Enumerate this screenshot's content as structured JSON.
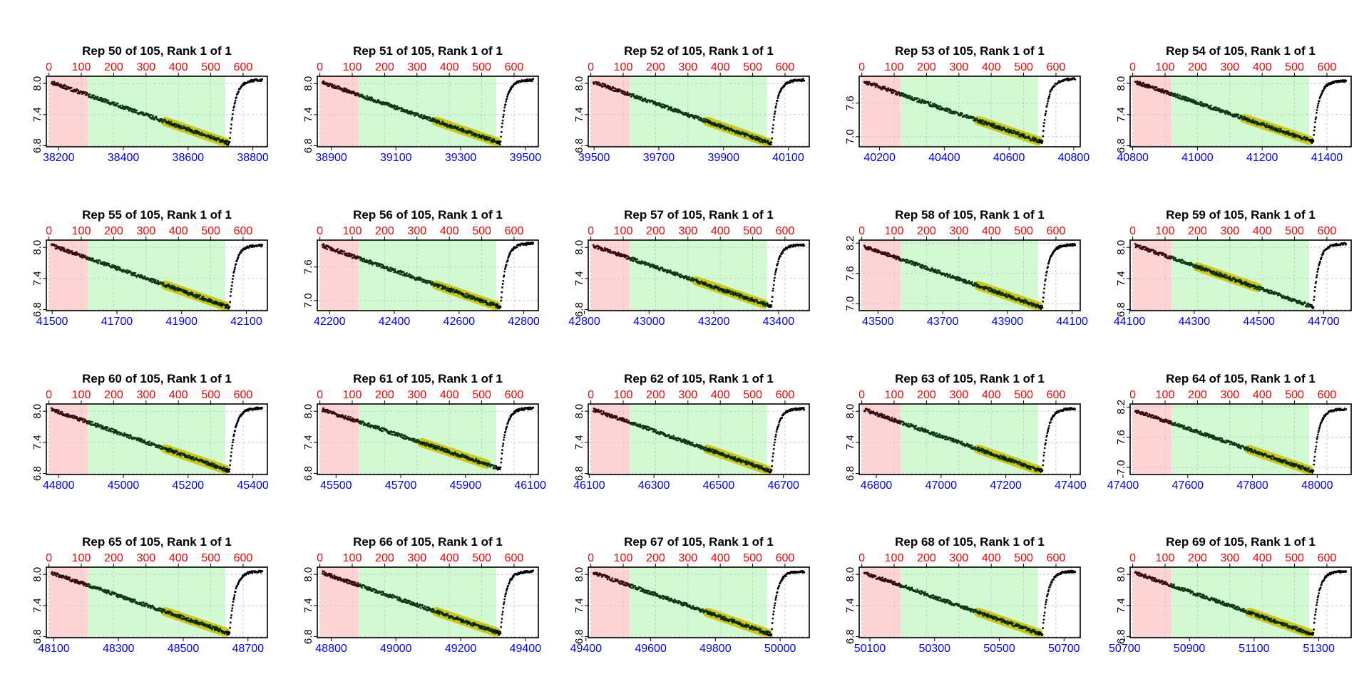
{
  "colors": {
    "top_axis": "#ff0000",
    "bottom_axis": "#0000ff",
    "red_region": "#ffd4d4",
    "green_region": "#d2fad2",
    "yellow_fit": "#cfc51f",
    "grid": "#c8c8c8",
    "points_red": "#3a0a0a",
    "points_green": "#0a3a12",
    "points_black": "#000000"
  },
  "chart_data": [
    {
      "type": "scatter",
      "title": "Rep 50 of 105, Rank 1 of 1",
      "top_ticks": [
        0,
        100,
        200,
        300,
        400,
        500,
        600
      ],
      "bottom_ticks": [
        38200,
        38400,
        38600,
        38800
      ],
      "bottom_offset": 38170,
      "yticks": [
        6.8,
        7.4,
        8.0
      ],
      "ylim": [
        6.78,
        8.14
      ],
      "y_start": 8.02,
      "y_bottom": 6.84,
      "y_end": 8.07,
      "trough_x": 558,
      "yellow": [
        360,
        545
      ]
    },
    {
      "type": "scatter",
      "title": "Rep 51 of 105, Rank 1 of 1",
      "top_ticks": [
        0,
        100,
        200,
        300,
        400,
        500,
        600
      ],
      "bottom_ticks": [
        38900,
        39100,
        39300,
        39500
      ],
      "bottom_offset": 38865,
      "yticks": [
        6.8,
        7.4,
        8.0
      ],
      "ylim": [
        6.78,
        8.14
      ],
      "y_start": 8.02,
      "y_bottom": 6.85,
      "y_end": 8.07,
      "trough_x": 558,
      "yellow": [
        360,
        545
      ]
    },
    {
      "type": "scatter",
      "title": "Rep 52 of 105, Rank 1 of 1",
      "top_ticks": [
        0,
        100,
        200,
        300,
        400,
        500,
        600
      ],
      "bottom_ticks": [
        39500,
        39700,
        39900,
        40100
      ],
      "bottom_offset": 39490,
      "yticks": [
        6.8,
        7.4,
        8.0
      ],
      "ylim": [
        6.78,
        8.14
      ],
      "y_start": 8.03,
      "y_bottom": 6.84,
      "y_end": 8.07,
      "trough_x": 558,
      "yellow": [
        360,
        545
      ]
    },
    {
      "type": "scatter",
      "title": "Rep 53 of 105, Rank 1 of 1",
      "top_ticks": [
        0,
        100,
        200,
        300,
        400,
        500,
        600
      ],
      "bottom_ticks": [
        40200,
        40400,
        40600,
        40800
      ],
      "bottom_offset": 40145,
      "yticks": [
        7.0,
        7.6
      ],
      "ylim": [
        6.82,
        8.08
      ],
      "y_start": 7.98,
      "y_bottom": 6.9,
      "y_end": 8.03,
      "trough_x": 558,
      "yellow": [
        360,
        545
      ]
    },
    {
      "type": "scatter",
      "title": "Rep 54 of 105, Rank 1 of 1",
      "top_ticks": [
        0,
        100,
        200,
        300,
        400,
        500,
        600
      ],
      "bottom_ticks": [
        40800,
        41000,
        41200,
        41400
      ],
      "bottom_offset": 40800,
      "yticks": [
        6.8,
        7.4,
        8.0
      ],
      "ylim": [
        6.78,
        8.14
      ],
      "y_start": 8.03,
      "y_bottom": 6.88,
      "y_end": 8.05,
      "trough_x": 558,
      "yellow": [
        345,
        545
      ]
    },
    {
      "type": "scatter",
      "title": "Rep 55 of 105, Rank 1 of 1",
      "top_ticks": [
        0,
        100,
        200,
        300,
        400,
        500,
        600
      ],
      "bottom_ticks": [
        41500,
        41700,
        41900,
        42100
      ],
      "bottom_offset": 41490,
      "yticks": [
        6.8,
        7.4,
        8.0
      ],
      "ylim": [
        6.78,
        8.14
      ],
      "y_start": 8.04,
      "y_bottom": 6.84,
      "y_end": 8.04,
      "trough_x": 558,
      "yellow": [
        360,
        545
      ]
    },
    {
      "type": "scatter",
      "title": "Rep 56 of 105, Rank 1 of 1",
      "top_ticks": [
        0,
        100,
        200,
        300,
        400,
        500,
        600
      ],
      "bottom_ticks": [
        42200,
        42400,
        42600,
        42800
      ],
      "bottom_offset": 42170,
      "yticks": [
        7.0,
        7.6
      ],
      "ylim": [
        6.82,
        8.08
      ],
      "y_start": 7.98,
      "y_bottom": 6.88,
      "y_end": 8.02,
      "trough_x": 558,
      "yellow": [
        360,
        545
      ]
    },
    {
      "type": "scatter",
      "title": "Rep 57 of 105, Rank 1 of 1",
      "top_ticks": [
        0,
        100,
        200,
        300,
        400,
        500,
        600
      ],
      "bottom_ticks": [
        42800,
        43000,
        43200,
        43400
      ],
      "bottom_offset": 42820,
      "yticks": [
        6.8,
        7.4,
        8.0
      ],
      "ylim": [
        6.78,
        8.14
      ],
      "y_start": 8.03,
      "y_bottom": 6.86,
      "y_end": 8.05,
      "trough_x": 558,
      "yellow": [
        325,
        535
      ]
    },
    {
      "type": "scatter",
      "title": "Rep 58 of 105, Rank 1 of 1",
      "top_ticks": [
        0,
        100,
        200,
        300,
        400,
        500,
        600
      ],
      "bottom_ticks": [
        43500,
        43700,
        43900,
        44100
      ],
      "bottom_offset": 43450,
      "yticks": [
        7.0,
        7.6,
        8.2
      ],
      "ylim": [
        6.86,
        8.26
      ],
      "y_start": 8.13,
      "y_bottom": 6.92,
      "y_end": 8.17,
      "trough_x": 558,
      "yellow": [
        360,
        545
      ]
    },
    {
      "type": "scatter",
      "title": "Rep 59 of 105, Rank 1 of 1",
      "top_ticks": [
        0,
        100,
        200,
        300,
        400,
        500,
        600
      ],
      "bottom_ticks": [
        44100,
        44300,
        44500,
        44700
      ],
      "bottom_offset": 44110,
      "yticks": [
        6.8,
        7.4,
        8.0
      ],
      "ylim": [
        6.78,
        8.14
      ],
      "y_start": 8.04,
      "y_bottom": 6.85,
      "y_end": 8.07,
      "trough_x": 558,
      "yellow": [
        200,
        385
      ]
    },
    {
      "type": "scatter",
      "title": "Rep 60 of 105, Rank 1 of 1",
      "top_ticks": [
        0,
        100,
        200,
        300,
        400,
        500,
        600
      ],
      "bottom_ticks": [
        44800,
        45000,
        45200,
        45400
      ],
      "bottom_offset": 44770,
      "yticks": [
        6.8,
        7.4,
        8.0
      ],
      "ylim": [
        6.78,
        8.14
      ],
      "y_start": 8.03,
      "y_bottom": 6.85,
      "y_end": 8.06,
      "trough_x": 558,
      "yellow": [
        360,
        545
      ]
    },
    {
      "type": "scatter",
      "title": "Rep 61 of 105, Rank 1 of 1",
      "top_ticks": [
        0,
        100,
        200,
        300,
        400,
        500,
        600
      ],
      "bottom_ticks": [
        45500,
        45700,
        45900,
        46100
      ],
      "bottom_offset": 45450,
      "yticks": [
        6.8,
        7.4,
        8.0
      ],
      "ylim": [
        6.78,
        8.14
      ],
      "y_start": 8.03,
      "y_bottom": 6.89,
      "y_end": 8.06,
      "trough_x": 558,
      "yellow": [
        315,
        515
      ]
    },
    {
      "type": "scatter",
      "title": "Rep 62 of 105, Rank 1 of 1",
      "top_ticks": [
        0,
        100,
        200,
        300,
        400,
        500,
        600
      ],
      "bottom_ticks": [
        46100,
        46300,
        46500,
        46700
      ],
      "bottom_offset": 46105,
      "yticks": [
        6.8,
        7.4,
        8.0
      ],
      "ylim": [
        6.78,
        8.14
      ],
      "y_start": 8.03,
      "y_bottom": 6.84,
      "y_end": 8.05,
      "trough_x": 558,
      "yellow": [
        360,
        545
      ]
    },
    {
      "type": "scatter",
      "title": "Rep 63 of 105, Rank 1 of 1",
      "top_ticks": [
        0,
        100,
        200,
        300,
        400,
        500,
        600
      ],
      "bottom_ticks": [
        46800,
        47000,
        47200,
        47400
      ],
      "bottom_offset": 46755,
      "yticks": [
        6.8,
        7.4,
        8.0
      ],
      "ylim": [
        6.78,
        8.14
      ],
      "y_start": 8.03,
      "y_bottom": 6.84,
      "y_end": 8.05,
      "trough_x": 558,
      "yellow": [
        360,
        545
      ]
    },
    {
      "type": "scatter",
      "title": "Rep 64 of 105, Rank 1 of 1",
      "top_ticks": [
        0,
        100,
        200,
        300,
        400,
        500,
        600
      ],
      "bottom_ticks": [
        47400,
        47600,
        47800,
        48000
      ],
      "bottom_offset": 47430,
      "yticks": [
        7.0,
        7.6,
        8.2
      ],
      "ylim": [
        6.86,
        8.26
      ],
      "y_start": 8.13,
      "y_bottom": 6.92,
      "y_end": 8.16,
      "trough_x": 558,
      "yellow": [
        360,
        545
      ]
    },
    {
      "type": "scatter",
      "title": "Rep 65 of 105, Rank 1 of 1",
      "top_ticks": [
        0,
        100,
        200,
        300,
        400,
        500,
        600
      ],
      "bottom_ticks": [
        48100,
        48300,
        48500,
        48700
      ],
      "bottom_offset": 48085,
      "yticks": [
        6.8,
        7.4,
        8.0
      ],
      "ylim": [
        6.78,
        8.14
      ],
      "y_start": 8.03,
      "y_bottom": 6.86,
      "y_end": 8.06,
      "trough_x": 558,
      "yellow": [
        360,
        545
      ]
    },
    {
      "type": "scatter",
      "title": "Rep 66 of 105, Rank 1 of 1",
      "top_ticks": [
        0,
        100,
        200,
        300,
        400,
        500,
        600
      ],
      "bottom_ticks": [
        48800,
        49000,
        49200,
        49400
      ],
      "bottom_offset": 48765,
      "yticks": [
        6.8,
        7.4,
        8.0
      ],
      "ylim": [
        6.78,
        8.14
      ],
      "y_start": 8.03,
      "y_bottom": 6.86,
      "y_end": 8.06,
      "trough_x": 558,
      "yellow": [
        360,
        545
      ]
    },
    {
      "type": "scatter",
      "title": "Rep 67 of 105, Rank 1 of 1",
      "top_ticks": [
        0,
        100,
        200,
        300,
        400,
        500,
        600
      ],
      "bottom_ticks": [
        49400,
        49600,
        49800,
        50000
      ],
      "bottom_offset": 49415,
      "yticks": [
        6.8,
        7.4,
        8.0
      ],
      "ylim": [
        6.78,
        8.14
      ],
      "y_start": 8.03,
      "y_bottom": 6.84,
      "y_end": 8.06,
      "trough_x": 558,
      "yellow": [
        360,
        545
      ]
    },
    {
      "type": "scatter",
      "title": "Rep 68 of 105, Rank 1 of 1",
      "top_ticks": [
        0,
        100,
        200,
        300,
        400,
        500,
        600
      ],
      "bottom_ticks": [
        50100,
        50300,
        50500,
        50700
      ],
      "bottom_offset": 50075,
      "yticks": [
        6.8,
        7.4,
        8.0
      ],
      "ylim": [
        6.78,
        8.14
      ],
      "y_start": 8.03,
      "y_bottom": 6.84,
      "y_end": 8.06,
      "trough_x": 558,
      "yellow": [
        360,
        545
      ]
    },
    {
      "type": "scatter",
      "title": "Rep 69 of 105, Rank 1 of 1",
      "top_ticks": [
        0,
        100,
        200,
        300,
        400,
        500,
        600
      ],
      "bottom_ticks": [
        50700,
        50900,
        51100,
        51300
      ],
      "bottom_offset": 50725,
      "yticks": [
        6.8,
        7.4,
        8.0
      ],
      "ylim": [
        6.78,
        8.14
      ],
      "y_start": 8.03,
      "y_bottom": 6.84,
      "y_end": 8.06,
      "trough_x": 558,
      "yellow": [
        360,
        545
      ]
    }
  ]
}
